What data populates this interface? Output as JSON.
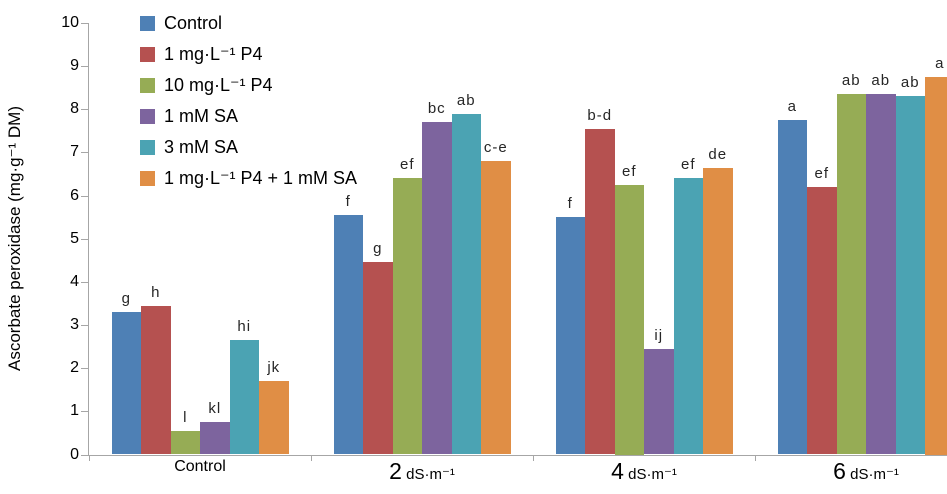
{
  "chart_data": {
    "type": "bar",
    "title": "",
    "xlabel": "",
    "ylabel": "Ascorbate peroxidase (mg·g⁻¹ DM)",
    "ylim": [
      0,
      10
    ],
    "yticks": [
      0,
      1,
      2,
      3,
      4,
      5,
      6,
      7,
      8,
      9,
      10
    ],
    "grid": false,
    "legend_position": "upper-left-inside",
    "categories": [
      "Control",
      "2 dS·m⁻¹",
      "4 dS·m⁻¹",
      "6 dS·m⁻¹"
    ],
    "category_label_parts": [
      {
        "num": "",
        "text": "Control"
      },
      {
        "num": "2",
        "text": "dS·m⁻¹"
      },
      {
        "num": "4",
        "text": "dS·m⁻¹"
      },
      {
        "num": "6",
        "text": "dS·m⁻¹"
      }
    ],
    "series": [
      {
        "name": "Control",
        "color": "#4E80B5",
        "values": [
          3.3,
          5.55,
          5.5,
          7.75
        ],
        "letters": [
          "g",
          "f",
          "f",
          "a"
        ]
      },
      {
        "name": "1 mg·L⁻¹ P4",
        "color": "#B55150",
        "values": [
          3.45,
          4.45,
          7.55,
          6.2
        ],
        "letters": [
          "h",
          "g",
          "b-d",
          "ef"
        ]
      },
      {
        "name": "10 mg·L⁻¹ P4",
        "color": "#96AC55",
        "values": [
          0.55,
          6.4,
          6.25,
          8.35
        ],
        "letters": [
          "l",
          "ef",
          "ef",
          "ab"
        ]
      },
      {
        "name": "1 mM SA",
        "color": "#7D649E",
        "values": [
          0.75,
          7.7,
          2.45,
          8.35
        ],
        "letters": [
          "kl",
          "bc",
          "ij",
          "ab"
        ]
      },
      {
        "name": "3 mM SA",
        "color": "#4BA3B3",
        "values": [
          2.65,
          7.9,
          6.4,
          8.3
        ],
        "letters": [
          "hi",
          "ab",
          "ef",
          "ab"
        ]
      },
      {
        "name": "1 mg·L⁻¹ P4 + 1 mM SA",
        "color": "#E08E45",
        "values": [
          1.7,
          6.8,
          6.65,
          8.75
        ],
        "letters": [
          "jk",
          "c-e",
          "de",
          "a"
        ]
      }
    ],
    "axis_color": "#a6a6a6",
    "text_color": "#000000"
  }
}
